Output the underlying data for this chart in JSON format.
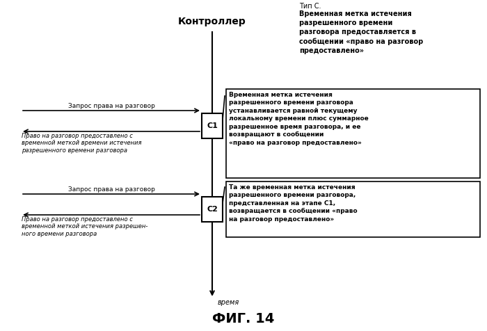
{
  "title": "ФИГ. 14",
  "controller_label": "Контроллер",
  "time_label": "время",
  "type_c_line1": "Тип С.",
  "type_c_bold": "Временная метка истечения\nразрешенного времени\nразговора предоставляется в\nсообщении «право на разговор\nпредоставлено»",
  "box_c1_label": "C1",
  "box_c2_label": "C2",
  "arrow_c1_req": "Запрос права на разговор",
  "arrow_c1_resp": "Право на разговор предоставлено с\nвременной меткой времени истечения\nразрешенного времени разговора",
  "arrow_c2_req": "Запрос права на разговор",
  "arrow_c2_resp": "Право на разговор предоставлено с\nвременной меткой истечения разрешен-\nного времени разговора",
  "box_c1_text": "Временная метка истечения\nразрешенного времени разговора\nустанавливается равной текущему\nлокальному времени плюс суммарное\nразрешенное время разговора, и ее\nвозвращают в сообщении\n«право на разговор предоставлено»",
  "box_c2_text": "Та же временная метка истечения\nразрешенного времени разговора,\nпредставленная на этапе С1,\nвозвращается в сообщении «право\nна разговор предоставлено»",
  "bg_color": "#ffffff",
  "line_color": "#000000",
  "text_color": "#000000",
  "box_bg": "#ffffff"
}
